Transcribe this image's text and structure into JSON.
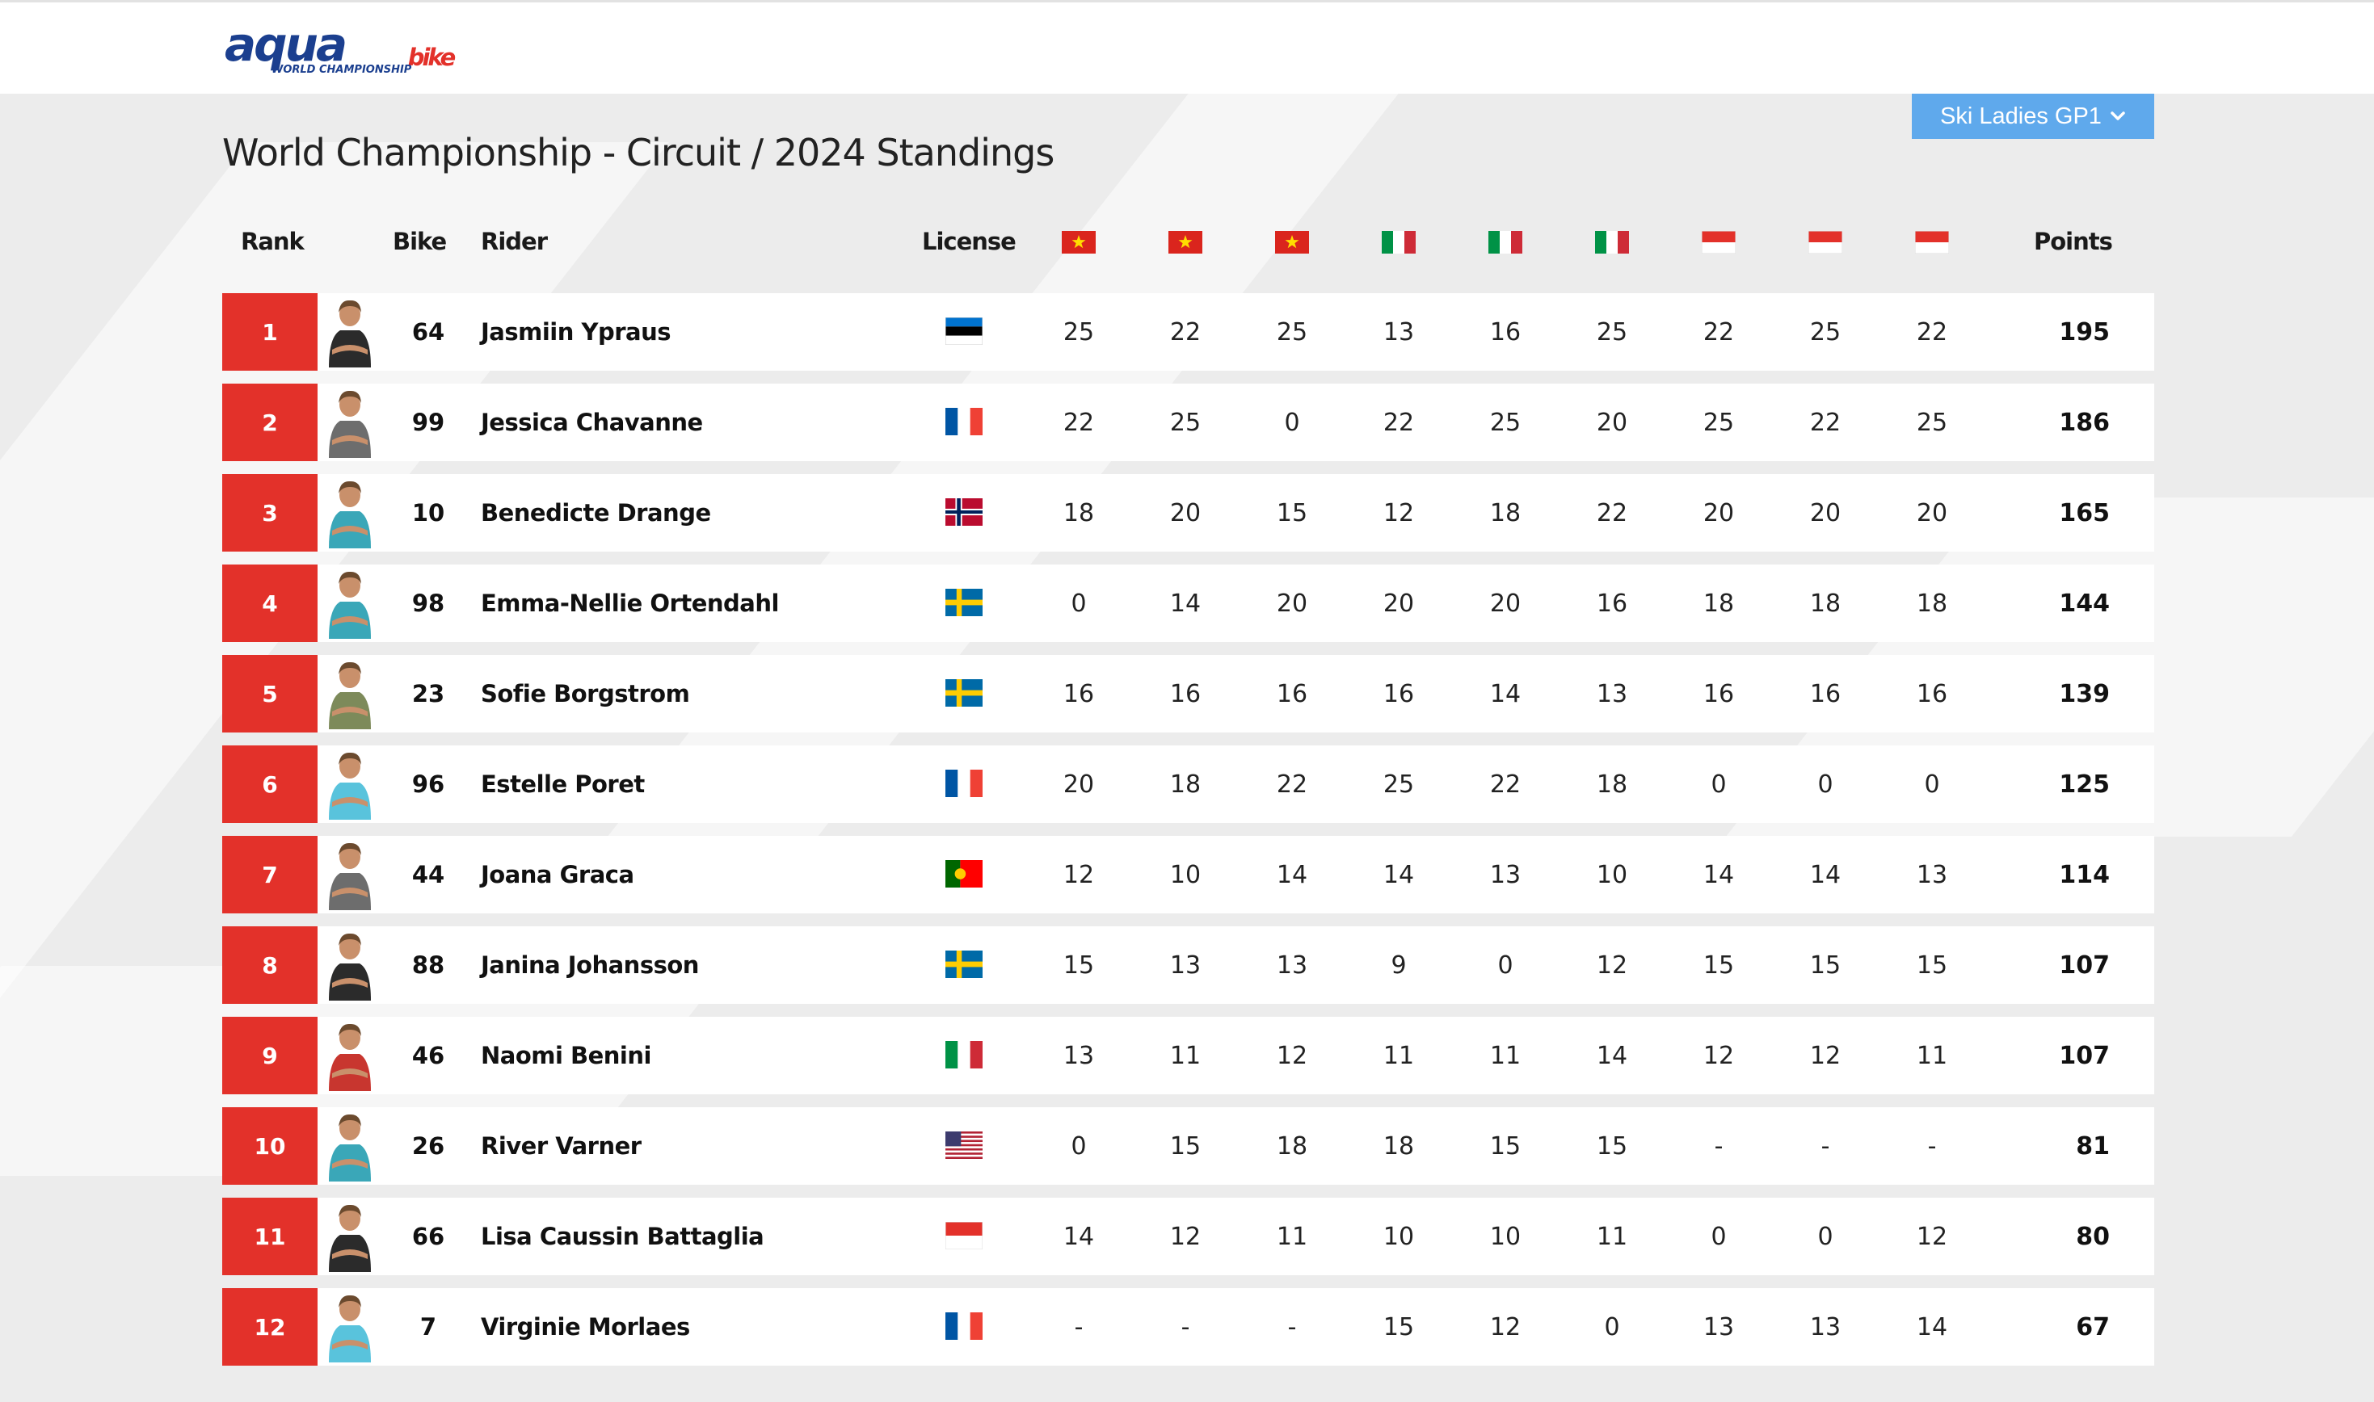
{
  "brand": {
    "logo_aqua": "aqua",
    "logo_bike": "bike",
    "logo_sub": "WORLD CHAMPIONSHIP"
  },
  "category_select": {
    "selected": "Ski Ladies GP1"
  },
  "page_title": "World Championship - Circuit / 2024 Standings",
  "headers": {
    "rank": "Rank",
    "bike": "Bike",
    "rider": "Rider",
    "license": "License",
    "points": "Points"
  },
  "race_flags": [
    "vietnam",
    "vietnam",
    "vietnam",
    "italy",
    "italy",
    "italy",
    "indonesia",
    "indonesia",
    "indonesia"
  ],
  "colors": {
    "accent_red": "#e3312a",
    "dropdown_blue": "#5fa9ec",
    "logo_blue": "#1b3f8f"
  },
  "standings": [
    {
      "rank": "1",
      "bike": "64",
      "rider": "Jasmiin Ypraus",
      "license": "estonia",
      "results": [
        "25",
        "22",
        "25",
        "13",
        "16",
        "25",
        "22",
        "25",
        "22"
      ],
      "points": "195",
      "avatar": "dark"
    },
    {
      "rank": "2",
      "bike": "99",
      "rider": "Jessica Chavanne",
      "license": "france",
      "results": [
        "22",
        "25",
        "0",
        "22",
        "25",
        "20",
        "25",
        "22",
        "25"
      ],
      "points": "186",
      "avatar": "grey"
    },
    {
      "rank": "3",
      "bike": "10",
      "rider": "Benedicte Drange",
      "license": "norway",
      "results": [
        "18",
        "20",
        "15",
        "12",
        "18",
        "22",
        "20",
        "20",
        "20"
      ],
      "points": "165",
      "avatar": "teal"
    },
    {
      "rank": "4",
      "bike": "98",
      "rider": "Emma-Nellie Ortendahl",
      "license": "sweden",
      "results": [
        "0",
        "14",
        "20",
        "20",
        "20",
        "16",
        "18",
        "18",
        "18"
      ],
      "points": "144",
      "avatar": "teal"
    },
    {
      "rank": "5",
      "bike": "23",
      "rider": "Sofie Borgstrom",
      "license": "sweden",
      "results": [
        "16",
        "16",
        "16",
        "16",
        "14",
        "13",
        "16",
        "16",
        "16"
      ],
      "points": "139",
      "avatar": "olive"
    },
    {
      "rank": "6",
      "bike": "96",
      "rider": "Estelle Poret",
      "license": "france",
      "results": [
        "20",
        "18",
        "22",
        "25",
        "22",
        "18",
        "0",
        "0",
        "0"
      ],
      "points": "125",
      "avatar": "cyan"
    },
    {
      "rank": "7",
      "bike": "44",
      "rider": "Joana Graca",
      "license": "portugal",
      "results": [
        "12",
        "10",
        "14",
        "14",
        "13",
        "10",
        "14",
        "14",
        "13"
      ],
      "points": "114",
      "avatar": "grey"
    },
    {
      "rank": "8",
      "bike": "88",
      "rider": "Janina Johansson",
      "license": "sweden",
      "results": [
        "15",
        "13",
        "13",
        "9",
        "0",
        "12",
        "15",
        "15",
        "15"
      ],
      "points": "107",
      "avatar": "dark"
    },
    {
      "rank": "9",
      "bike": "46",
      "rider": "Naomi Benini",
      "license": "italy",
      "results": [
        "13",
        "11",
        "12",
        "11",
        "11",
        "14",
        "12",
        "12",
        "11"
      ],
      "points": "107",
      "avatar": "red"
    },
    {
      "rank": "10",
      "bike": "26",
      "rider": "River Varner",
      "license": "usa",
      "results": [
        "0",
        "15",
        "18",
        "18",
        "15",
        "15",
        "-",
        "-",
        "-"
      ],
      "points": "81",
      "avatar": "teal"
    },
    {
      "rank": "11",
      "bike": "66",
      "rider": "Lisa Caussin Battaglia",
      "license": "indonesia",
      "results": [
        "14",
        "12",
        "11",
        "10",
        "10",
        "11",
        "0",
        "0",
        "12"
      ],
      "points": "80",
      "avatar": "dark"
    },
    {
      "rank": "12",
      "bike": "7",
      "rider": "Virginie Morlaes",
      "license": "france",
      "results": [
        "-",
        "-",
        "-",
        "15",
        "12",
        "0",
        "13",
        "13",
        "14"
      ],
      "points": "67",
      "avatar": "cyan"
    }
  ]
}
